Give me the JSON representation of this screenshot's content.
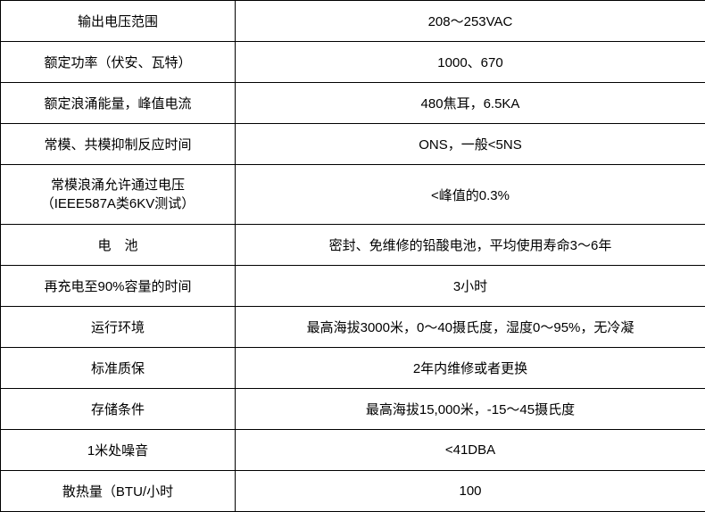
{
  "specs": {
    "rows": [
      {
        "label": "输出电压范围",
        "value": "208～253VAC"
      },
      {
        "label": "额定功率（伏安、瓦特）",
        "value": "1000、670"
      },
      {
        "label": "额定浪涌能量，峰值电流",
        "value": "480焦耳，6.5KA"
      },
      {
        "label": "常模、共模抑制反应时间",
        "value": "ONS，一般<5NS"
      },
      {
        "label": "常模浪涌允许通过电压\n（IEEE587A类6KV测试）",
        "value": "<峰值的0.3%"
      },
      {
        "label": "电　池",
        "value": "密封、免维修的铅酸电池，平均使用寿命3～6年"
      },
      {
        "label": "再充电至90%容量的时间",
        "value": "3小时"
      },
      {
        "label": "运行环境",
        "value": "最高海拔3000米，0～40摄氏度，湿度0～95%，无冷凝"
      },
      {
        "label": "标准质保",
        "value": "2年内维修或者更换"
      },
      {
        "label": "存储条件",
        "value": "最高海拔15,000米，-15～45摄氏度"
      },
      {
        "label": "1米处噪音",
        "value": "<41DBA"
      },
      {
        "label": "散热量（BTU/小时",
        "value": "100"
      }
    ]
  },
  "table_style": {
    "border_color": "#000000",
    "background_color": "#ffffff",
    "text_color": "#000000",
    "font_size": 15,
    "label_col_width": 263,
    "value_col_width": 527,
    "cell_padding": 12
  }
}
